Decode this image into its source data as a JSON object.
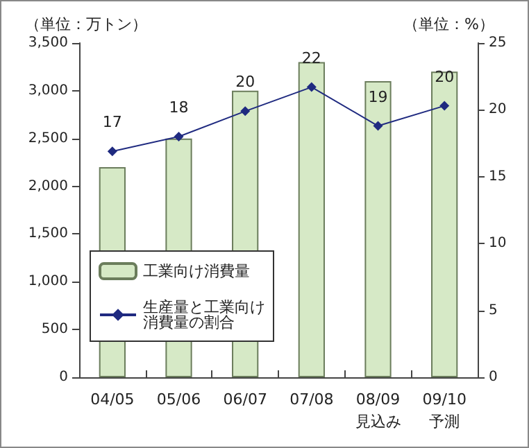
{
  "chart_data": {
    "type": "bar",
    "ylabel": "（単位：万トン）",
    "y2label": "（単位：%）",
    "categories": [
      "04/05",
      "05/06",
      "06/07",
      "07/08",
      "08/09\n見込み",
      "09/10\n予測"
    ],
    "series": [
      {
        "name": "工業向け消費量",
        "color": "#d6e9c6",
        "values": [
          2200,
          2500,
          3000,
          3300,
          3100,
          3200
        ]
      },
      {
        "name": "生産量と工業向け消費量の割合",
        "type": "line",
        "axis": "y2",
        "color": "#1f2a80",
        "marker": "diamond",
        "values": [
          16.9,
          18.0,
          19.9,
          21.7,
          18.8,
          20.3
        ],
        "value_labels": [
          "17",
          "18",
          "20",
          "22",
          "19",
          "20"
        ]
      }
    ],
    "ylim": [
      0,
      3500
    ],
    "yticks": [
      0,
      500,
      {
        "value": 1000,
        "label": "1,000"
      },
      {
        "value": 1500,
        "label": "1,500"
      },
      {
        "value": 2000,
        "label": "2,000"
      },
      {
        "value": 2500,
        "label": "2,500"
      },
      {
        "value": 3000,
        "label": "3,000"
      },
      {
        "value": 3500,
        "label": "3,500"
      }
    ],
    "y2lim": [
      0,
      25
    ],
    "y2ticks": [
      0,
      5,
      10,
      15,
      20,
      25
    ],
    "grid": false,
    "legend": "left"
  }
}
